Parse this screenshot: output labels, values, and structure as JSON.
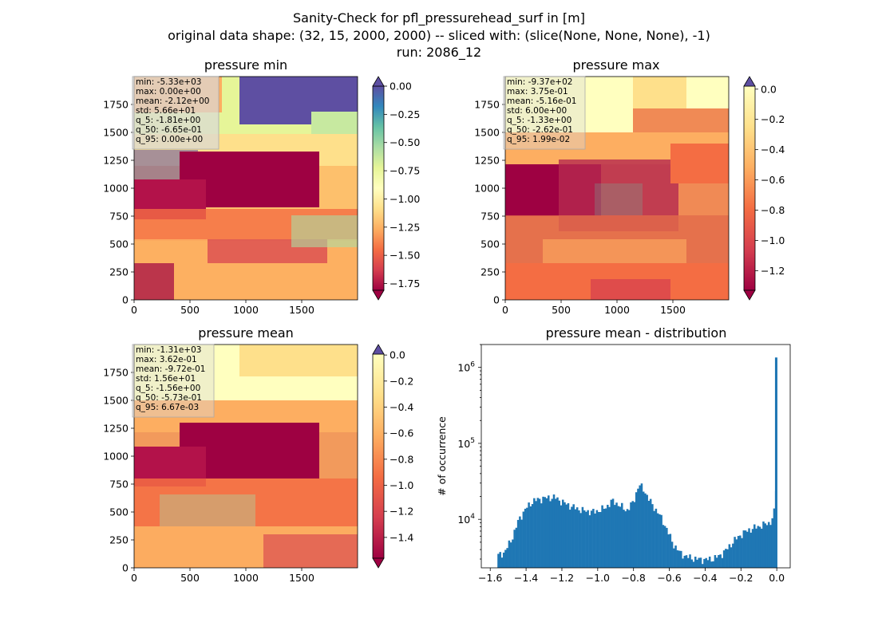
{
  "figure": {
    "title_line1": "Sanity-Check for pfl_pressurehead_surf in [m]",
    "title_line2": "original data shape: (32, 15, 2000, 2000) -- sliced with: (slice(None, None, None), -1)",
    "title_line3": "run: 2086_12"
  },
  "colors": {
    "histogram_bar": "#1f77b4",
    "colormap": "Spectral"
  },
  "chart_data": [
    {
      "type": "heatmap",
      "title": "pressure min",
      "colormap": "Spectral",
      "x_ticks": [
        0,
        500,
        1000,
        1500
      ],
      "y_ticks": [
        0,
        250,
        500,
        750,
        1000,
        1250,
        1500,
        1750
      ],
      "xlim": [
        0,
        2000
      ],
      "ylim": [
        0,
        2000
      ],
      "colorbar": {
        "ticks": [
          "0.00",
          "-0.25",
          "-0.50",
          "-0.75",
          "-1.00",
          "-1.25",
          "-1.50",
          "-1.75"
        ],
        "range": [
          -1.81,
          0.0
        ],
        "extend": "both"
      },
      "stats": [
        "min: -5.33e+03",
        "max: 0.00e+00",
        "mean: -2.12e+00",
        "std: 5.66e+01",
        "q_5: -1.81e+00",
        "q_50: -6.65e-01",
        "q_95: 0.00e+00"
      ]
    },
    {
      "type": "heatmap",
      "title": "pressure max",
      "colormap": "Spectral",
      "x_ticks": [
        0,
        500,
        1000,
        1500
      ],
      "y_ticks": [
        0,
        250,
        500,
        750,
        1000,
        1250,
        1500,
        1750
      ],
      "xlim": [
        0,
        2000
      ],
      "ylim": [
        0,
        2000
      ],
      "colorbar": {
        "ticks": [
          "0.0",
          "-0.2",
          "-0.4",
          "-0.6",
          "-0.8",
          "-1.0",
          "-1.2"
        ],
        "range": [
          -1.33,
          0.02
        ],
        "extend": "both"
      },
      "stats": [
        "min: -9.37e+02",
        "max: 3.75e-01",
        "mean: -5.16e-01",
        "std: 6.00e+00",
        "q_5: -1.33e+00",
        "q_50: -2.62e-01",
        "q_95: 1.99e-02"
      ]
    },
    {
      "type": "heatmap",
      "title": "pressure mean",
      "colormap": "Spectral",
      "x_ticks": [
        0,
        500,
        1000,
        1500
      ],
      "y_ticks": [
        0,
        250,
        500,
        750,
        1000,
        1250,
        1500,
        1750
      ],
      "xlim": [
        0,
        2000
      ],
      "ylim": [
        0,
        2000
      ],
      "colorbar": {
        "ticks": [
          "0.0",
          "-0.2",
          "-0.4",
          "-0.6",
          "-0.8",
          "-1.0",
          "-1.2",
          "-1.4"
        ],
        "range": [
          -1.56,
          0.007
        ],
        "extend": "both"
      },
      "stats": [
        "min: -1.31e+03",
        "max: 3.62e-01",
        "mean: -9.72e-01",
        "std: 1.56e+01",
        "q_5: -1.56e+00",
        "q_50: -5.73e-01",
        "q_95: 6.67e-03"
      ]
    },
    {
      "type": "bar",
      "title": "pressure mean - distribution",
      "xlabel": "",
      "ylabel": "# of occurrence",
      "y_scale": "log",
      "x_ticks": [
        "−1.6",
        "−1.4",
        "−1.2",
        "−1.0",
        "−0.8",
        "−0.6",
        "−0.4",
        "−0.2",
        "0.0"
      ],
      "x_tick_values": [
        -1.6,
        -1.4,
        -1.2,
        -1.0,
        -0.8,
        -0.6,
        -0.4,
        -0.2,
        0.0
      ],
      "y_ticks": [
        10000,
        100000,
        1000000
      ],
      "xlim": [
        -1.65,
        0.075
      ],
      "ylim": [
        2300,
        2000000
      ],
      "bin_range": [
        -1.56,
        0.0
      ],
      "control_points": [
        [
          -1.56,
          3300
        ],
        [
          -1.52,
          3700
        ],
        [
          -1.48,
          5500
        ],
        [
          -1.44,
          10000
        ],
        [
          -1.4,
          14000
        ],
        [
          -1.36,
          17500
        ],
        [
          -1.3,
          19000
        ],
        [
          -1.24,
          19500
        ],
        [
          -1.2,
          17000
        ],
        [
          -1.14,
          14500
        ],
        [
          -1.08,
          13000
        ],
        [
          -1.02,
          12500
        ],
        [
          -0.96,
          14000
        ],
        [
          -0.92,
          17500
        ],
        [
          -0.88,
          15500
        ],
        [
          -0.84,
          13000
        ],
        [
          -0.8,
          17000
        ],
        [
          -0.77,
          29000
        ],
        [
          -0.74,
          24000
        ],
        [
          -0.7,
          16000
        ],
        [
          -0.66,
          12000
        ],
        [
          -0.62,
          8000
        ],
        [
          -0.58,
          4800
        ],
        [
          -0.54,
          3600
        ],
        [
          -0.5,
          3200
        ],
        [
          -0.45,
          3000
        ],
        [
          -0.4,
          2950
        ],
        [
          -0.36,
          3000
        ],
        [
          -0.32,
          3300
        ],
        [
          -0.28,
          4000
        ],
        [
          -0.24,
          5200
        ],
        [
          -0.2,
          6300
        ],
        [
          -0.16,
          7200
        ],
        [
          -0.12,
          7800
        ],
        [
          -0.08,
          8400
        ],
        [
          -0.04,
          9000
        ],
        [
          -0.02,
          10500
        ],
        [
          -0.01,
          15000
        ],
        [
          0.0,
          42000
        ]
      ],
      "peak_bin": {
        "x": 0.0,
        "value": 1350000
      }
    }
  ]
}
